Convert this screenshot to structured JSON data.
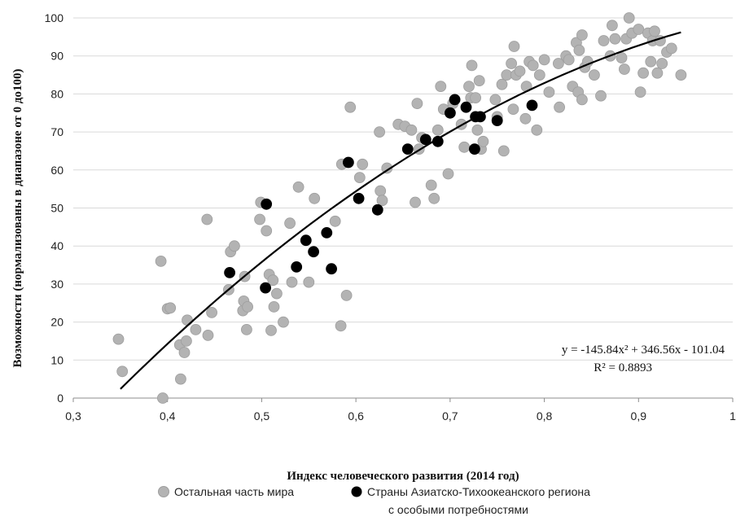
{
  "chart_data": {
    "type": "scatter",
    "xlabel": "Индекс человеческого развития (2014 год)",
    "ylabel": "Возможности (нормализованы в диапазоне от 0 до100)",
    "xlim": [
      0.3,
      1
    ],
    "ylim": [
      0,
      100
    ],
    "x_ticks": [
      "0,3",
      "0,4",
      "0,5",
      "0,6",
      "0,7",
      "0,8",
      "0,9",
      "1"
    ],
    "y_ticks": [
      "0",
      "10",
      "20",
      "30",
      "40",
      "50",
      "60",
      "70",
      "80",
      "90",
      "100"
    ],
    "grid": "horizontal",
    "legend_position": "bottom",
    "series": [
      {
        "name": "Остальная часть мира",
        "color": "#b3b3b3",
        "points": [
          [
            0.348,
            15.5
          ],
          [
            0.352,
            7
          ],
          [
            0.393,
            36
          ],
          [
            0.395,
            0
          ],
          [
            0.4,
            23.5
          ],
          [
            0.403,
            23.7
          ],
          [
            0.413,
            14
          ],
          [
            0.414,
            5
          ],
          [
            0.418,
            12
          ],
          [
            0.421,
            20.5
          ],
          [
            0.42,
            15
          ],
          [
            0.43,
            18
          ],
          [
            0.442,
            47
          ],
          [
            0.443,
            16.5
          ],
          [
            0.447,
            22.5
          ],
          [
            0.465,
            28.5
          ],
          [
            0.467,
            38.5
          ],
          [
            0.471,
            40
          ],
          [
            0.48,
            23
          ],
          [
            0.481,
            25.5
          ],
          [
            0.482,
            32
          ],
          [
            0.484,
            18
          ],
          [
            0.485,
            24
          ],
          [
            0.498,
            47
          ],
          [
            0.499,
            51.5
          ],
          [
            0.505,
            44
          ],
          [
            0.508,
            32.5
          ],
          [
            0.51,
            17.8
          ],
          [
            0.512,
            31
          ],
          [
            0.513,
            24
          ],
          [
            0.516,
            27.5
          ],
          [
            0.523,
            20
          ],
          [
            0.53,
            46
          ],
          [
            0.532,
            30.5
          ],
          [
            0.539,
            55.5
          ],
          [
            0.55,
            30.5
          ],
          [
            0.556,
            52.5
          ],
          [
            0.578,
            46.5
          ],
          [
            0.584,
            19
          ],
          [
            0.585,
            61.5
          ],
          [
            0.59,
            27
          ],
          [
            0.594,
            76.5
          ],
          [
            0.604,
            58
          ],
          [
            0.607,
            61.5
          ],
          [
            0.625,
            70
          ],
          [
            0.626,
            54.5
          ],
          [
            0.628,
            52
          ],
          [
            0.633,
            60.5
          ],
          [
            0.645,
            72
          ],
          [
            0.652,
            71.5
          ],
          [
            0.659,
            70.5
          ],
          [
            0.663,
            51.5
          ],
          [
            0.665,
            77.5
          ],
          [
            0.667,
            65.5
          ],
          [
            0.67,
            68.5
          ],
          [
            0.68,
            56
          ],
          [
            0.683,
            52.5
          ],
          [
            0.687,
            70.5
          ],
          [
            0.69,
            82
          ],
          [
            0.693,
            76
          ],
          [
            0.698,
            59
          ],
          [
            0.703,
            77.5
          ],
          [
            0.712,
            72
          ],
          [
            0.715,
            66
          ],
          [
            0.72,
            82
          ],
          [
            0.722,
            79
          ],
          [
            0.723,
            87.5
          ],
          [
            0.727,
            79
          ],
          [
            0.729,
            70.5
          ],
          [
            0.731,
            83.5
          ],
          [
            0.733,
            65.5
          ],
          [
            0.735,
            67.5
          ],
          [
            0.748,
            78.5
          ],
          [
            0.75,
            74
          ],
          [
            0.755,
            82.5
          ],
          [
            0.757,
            65
          ],
          [
            0.76,
            85
          ],
          [
            0.765,
            88
          ],
          [
            0.767,
            76
          ],
          [
            0.768,
            92.5
          ],
          [
            0.77,
            85
          ],
          [
            0.774,
            86
          ],
          [
            0.78,
            73.5
          ],
          [
            0.781,
            82
          ],
          [
            0.784,
            88.5
          ],
          [
            0.788,
            87.5
          ],
          [
            0.792,
            70.5
          ],
          [
            0.795,
            85
          ],
          [
            0.8,
            89
          ],
          [
            0.805,
            80.5
          ],
          [
            0.815,
            88
          ],
          [
            0.816,
            76.5
          ],
          [
            0.823,
            90
          ],
          [
            0.826,
            89
          ],
          [
            0.83,
            82
          ],
          [
            0.834,
            93.5
          ],
          [
            0.836,
            80.5
          ],
          [
            0.837,
            91.5
          ],
          [
            0.84,
            95.5
          ],
          [
            0.84,
            78.5
          ],
          [
            0.843,
            87
          ],
          [
            0.846,
            88.5
          ],
          [
            0.853,
            85
          ],
          [
            0.86,
            79.5
          ],
          [
            0.863,
            94
          ],
          [
            0.87,
            90
          ],
          [
            0.872,
            98
          ],
          [
            0.875,
            94.5
          ],
          [
            0.882,
            89.5
          ],
          [
            0.885,
            86.5
          ],
          [
            0.887,
            94.5
          ],
          [
            0.89,
            100
          ],
          [
            0.893,
            96
          ],
          [
            0.9,
            97
          ],
          [
            0.902,
            80.5
          ],
          [
            0.905,
            85.5
          ],
          [
            0.91,
            96
          ],
          [
            0.913,
            88.5
          ],
          [
            0.915,
            94
          ],
          [
            0.917,
            96.5
          ],
          [
            0.92,
            85.5
          ],
          [
            0.923,
            94
          ],
          [
            0.925,
            88
          ],
          [
            0.93,
            91
          ],
          [
            0.935,
            92
          ],
          [
            0.945,
            85
          ]
        ]
      },
      {
        "name": "Страны Азиатско-Тихоокеанского региона с особыми потребностями",
        "color": "#000000",
        "points": [
          [
            0.466,
            33
          ],
          [
            0.504,
            29
          ],
          [
            0.505,
            51
          ],
          [
            0.537,
            34.5
          ],
          [
            0.547,
            41.5
          ],
          [
            0.555,
            38.5
          ],
          [
            0.569,
            43.5
          ],
          [
            0.574,
            34
          ],
          [
            0.592,
            62
          ],
          [
            0.603,
            52.5
          ],
          [
            0.623,
            49.5
          ],
          [
            0.655,
            65.5
          ],
          [
            0.674,
            68
          ],
          [
            0.687,
            67.5
          ],
          [
            0.7,
            75
          ],
          [
            0.705,
            78.5
          ],
          [
            0.717,
            76.5
          ],
          [
            0.726,
            65.5
          ],
          [
            0.727,
            74
          ],
          [
            0.732,
            74
          ],
          [
            0.75,
            73
          ],
          [
            0.787,
            77
          ]
        ]
      }
    ],
    "trendline": {
      "type": "polynomial",
      "coefficients": {
        "a": -145.84,
        "b": 346.56,
        "c": -101.04
      },
      "x_range": [
        0.35,
        0.945
      ],
      "equation": "y = -145.84x² + 346.56x - 101.04",
      "r_squared": "R² = 0.8893"
    }
  }
}
